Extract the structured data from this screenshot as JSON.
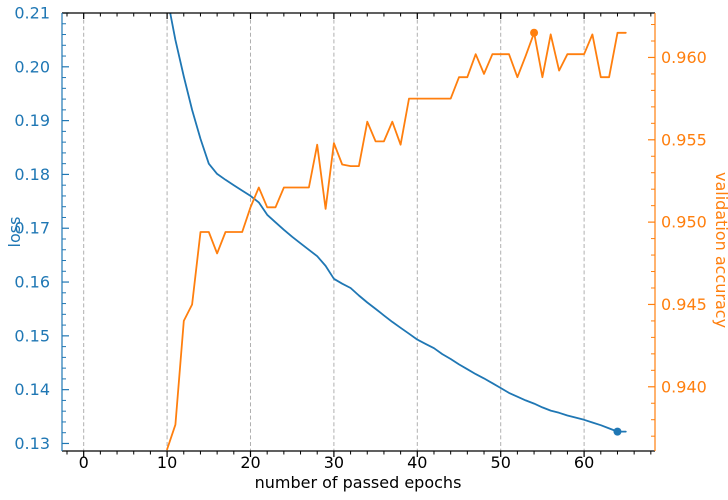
{
  "chart_data": {
    "type": "line",
    "title": "",
    "x_label": "number of passed epochs",
    "grid": {
      "axis": "x",
      "style": "dashed",
      "color": "#b0b0b0"
    },
    "xlim": [
      -2.6,
      68.5
    ],
    "x_ticks": {
      "values": [
        0,
        10,
        20,
        30,
        40,
        50,
        60
      ],
      "labels": [
        "0",
        "10",
        "20",
        "30",
        "40",
        "50",
        "60"
      ],
      "minor_step": 2
    },
    "left_axis": {
      "label": "loss",
      "color": "#1f77b4",
      "lim": [
        0.1286,
        0.21
      ],
      "tick_values": [
        0.13,
        0.14,
        0.15,
        0.16,
        0.17,
        0.18,
        0.19,
        0.2,
        0.21
      ],
      "tick_labels": [
        "0.13",
        "0.14",
        "0.15",
        "0.16",
        "0.17",
        "0.18",
        "0.19",
        "0.20",
        "0.21"
      ],
      "minor_step": 0.002
    },
    "right_axis": {
      "label": "validation accuracy",
      "color": "#ff7f0e",
      "lim": [
        0.9361,
        0.9627
      ],
      "tick_values": [
        0.94,
        0.945,
        0.95,
        0.955,
        0.96
      ],
      "tick_labels": [
        "0.940",
        "0.945",
        "0.950",
        "0.955",
        "0.960"
      ],
      "minor_step": 0.001
    },
    "x": [
      10,
      11,
      12,
      13,
      14,
      15,
      16,
      17,
      18,
      19,
      20,
      21,
      22,
      23,
      24,
      25,
      26,
      27,
      28,
      29,
      30,
      31,
      32,
      33,
      34,
      35,
      36,
      37,
      38,
      39,
      40,
      41,
      42,
      43,
      44,
      45,
      46,
      47,
      48,
      49,
      50,
      51,
      52,
      53,
      54,
      55,
      56,
      57,
      58,
      59,
      60,
      61,
      62,
      63,
      64,
      65
    ],
    "series": [
      {
        "name": "loss",
        "axis": "left",
        "color": "#1f77b4",
        "values": [
          0.213,
          0.205,
          0.1982,
          0.192,
          0.1866,
          0.182,
          0.1801,
          0.179,
          0.178,
          0.177,
          0.176,
          0.1748,
          0.1725,
          0.1711,
          0.1697,
          0.1684,
          0.1672,
          0.166,
          0.1648,
          0.163,
          0.1606,
          0.1597,
          0.1589,
          0.1575,
          0.1562,
          0.155,
          0.1538,
          0.1526,
          0.1515,
          0.1504,
          0.1493,
          0.1485,
          0.1477,
          0.1466,
          0.1457,
          0.1447,
          0.1438,
          0.1429,
          0.1421,
          0.1412,
          0.1403,
          0.1394,
          0.1387,
          0.138,
          0.1374,
          0.1367,
          0.1361,
          0.1357,
          0.1352,
          0.1348,
          0.1344,
          0.1339,
          0.1334,
          0.1328,
          0.1322,
          0.1322
        ],
        "marker_point": {
          "x": 64,
          "y": 0.1322
        }
      },
      {
        "name": "validation accuracy",
        "axis": "right",
        "color": "#ff7f0e",
        "values": [
          0.9362,
          0.9377,
          0.944,
          0.945,
          0.9494,
          0.9494,
          0.9481,
          0.9494,
          0.9494,
          0.9494,
          0.9509,
          0.9521,
          0.9509,
          0.9509,
          0.9521,
          0.9521,
          0.9521,
          0.9521,
          0.9547,
          0.9508,
          0.9548,
          0.9535,
          0.9534,
          0.9534,
          0.9561,
          0.9549,
          0.9549,
          0.9561,
          0.9547,
          0.9575,
          0.9575,
          0.9575,
          0.9575,
          0.9575,
          0.9575,
          0.9588,
          0.9588,
          0.9602,
          0.959,
          0.9602,
          0.9602,
          0.9602,
          0.9588,
          0.9601,
          0.9615,
          0.9588,
          0.9614,
          0.9592,
          0.9602,
          0.9602,
          0.9602,
          0.9614,
          0.9588,
          0.9588,
          0.9615,
          0.9615
        ],
        "marker_point": {
          "x": 54,
          "y": 0.9615
        }
      }
    ]
  }
}
